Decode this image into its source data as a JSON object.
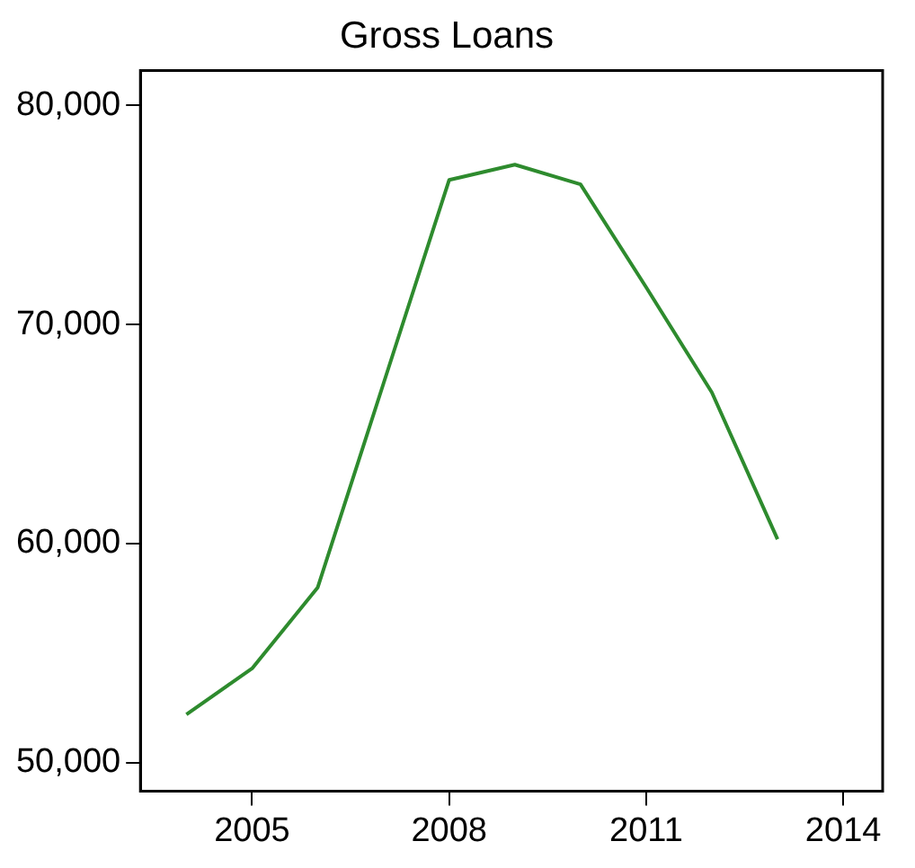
{
  "chart_data": {
    "type": "line",
    "title": "Gross Loans",
    "x": [
      2004,
      2005,
      2006,
      2007,
      2008,
      2009,
      2010,
      2011,
      2012,
      2013
    ],
    "series": [
      {
        "color": "#2e8b2e",
        "values": [
          52200,
          54300,
          58000,
          67300,
          76600,
          77300,
          76400,
          71700,
          66900,
          60200
        ]
      }
    ],
    "xlim": [
      2003.3,
      2014.6
    ],
    "xticks": [
      2005,
      2008,
      2011,
      2014
    ],
    "ylim": [
      48700,
      81600
    ],
    "yticks": [
      {
        "value": 50000,
        "label": "50,000"
      },
      {
        "value": 60000,
        "label": "60,000"
      },
      {
        "value": 70000,
        "label": "70,000"
      },
      {
        "value": 80000,
        "label": "80,000"
      }
    ],
    "grid": false,
    "legend": false,
    "marker": "none",
    "line_style": "solid"
  }
}
